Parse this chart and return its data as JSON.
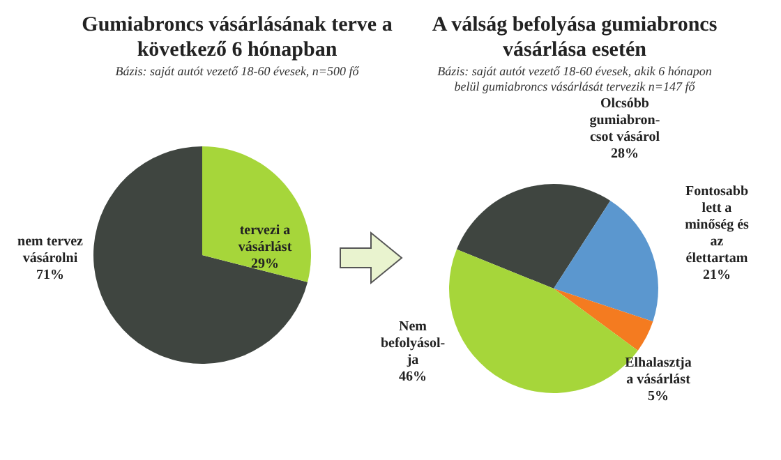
{
  "chart_data": [
    {
      "type": "pie",
      "title": "Gumiabroncs vásárlásának terve a\nkövetkező 6 hónapban",
      "subtitle": "Bázis: saját autót vezető 18-60 évesek,  n=500 fő",
      "categories": [
        "nem tervez\nvásárolni",
        "tervezi a\nvásárlást"
      ],
      "values": [
        71,
        29
      ],
      "colors": [
        "#3f4540",
        "#a6d63a"
      ],
      "value_labels": [
        "71%",
        "29%"
      ]
    },
    {
      "type": "pie",
      "title": "A válság befolyása gumiabroncs\nvásárlása esetén",
      "subtitle": "Bázis: saját autót vezető 18-60 évesek, akik 6 hónapon\nbelül gumiabroncs vásárlását tervezik  n=147 fő",
      "categories": [
        "Olcsóbb\ngumiabron-\ncsot vásárol",
        "Fontosabb\nlett a\nminőség és\naz\nélettartam",
        "Elhalasztja\na vásárlást",
        "Nem\nbefolyásol-\nja"
      ],
      "values": [
        28,
        21,
        5,
        46
      ],
      "colors": [
        "#3f4540",
        "#5b97cf",
        "#f47b20",
        "#a6d63a"
      ],
      "value_labels": [
        "28%",
        "21%",
        "5%",
        "46%"
      ]
    }
  ]
}
